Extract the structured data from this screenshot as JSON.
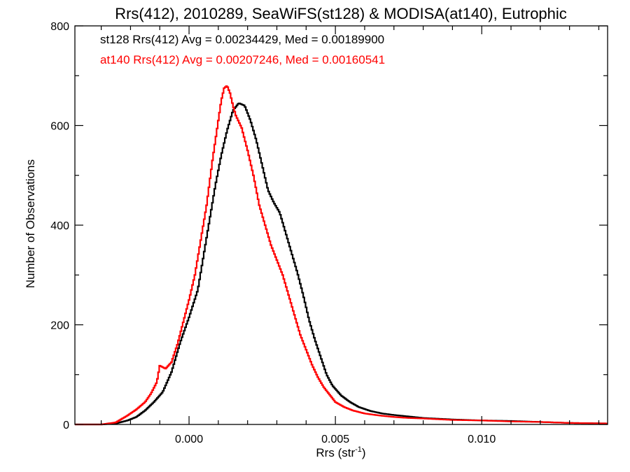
{
  "chart_data": {
    "type": "line",
    "title": "Rrs(412), 2010289, SeaWiFS(st128) & MODISA(at140), Eutrophic",
    "xlabel_base": "Rrs (str",
    "xlabel_sup": "-1",
    "xlabel_close": ")",
    "ylabel": "Number of Observations",
    "xlim": [
      -0.0039,
      0.0143
    ],
    "ylim": [
      0,
      800
    ],
    "x_ticks": [
      {
        "value": 0.0,
        "label": "0.000"
      },
      {
        "value": 0.005,
        "label": "0.005"
      },
      {
        "value": 0.01,
        "label": "0.010"
      }
    ],
    "y_ticks": [
      {
        "value": 0,
        "label": "0"
      },
      {
        "value": 200,
        "label": "200"
      },
      {
        "value": 400,
        "label": "400"
      },
      {
        "value": 600,
        "label": "600"
      },
      {
        "value": 800,
        "label": "800"
      }
    ],
    "grid": false,
    "legend_position": "top-left",
    "series": [
      {
        "name": "st128 Rrs(412) Avg = 0.00234429, Med = 0.00189900",
        "color": "#000000",
        "points": [
          [
            -0.0039,
            0
          ],
          [
            -0.003,
            0
          ],
          [
            -0.0025,
            2
          ],
          [
            -0.0021,
            8
          ],
          [
            -0.0018,
            15
          ],
          [
            -0.0015,
            28
          ],
          [
            -0.0012,
            45
          ],
          [
            -0.0009,
            65
          ],
          [
            -0.0006,
            105
          ],
          [
            -0.0003,
            165
          ],
          [
            0.0,
            215
          ],
          [
            0.0003,
            270
          ],
          [
            0.0005,
            340
          ],
          [
            0.0007,
            410
          ],
          [
            0.0009,
            480
          ],
          [
            0.0011,
            540
          ],
          [
            0.0013,
            590
          ],
          [
            0.0015,
            630
          ],
          [
            0.0017,
            645
          ],
          [
            0.0019,
            640
          ],
          [
            0.0021,
            610
          ],
          [
            0.0023,
            570
          ],
          [
            0.0025,
            520
          ],
          [
            0.0027,
            470
          ],
          [
            0.0029,
            445
          ],
          [
            0.0031,
            425
          ],
          [
            0.0033,
            385
          ],
          [
            0.0035,
            345
          ],
          [
            0.0037,
            305
          ],
          [
            0.0039,
            260
          ],
          [
            0.0041,
            210
          ],
          [
            0.0043,
            170
          ],
          [
            0.0045,
            135
          ],
          [
            0.0047,
            100
          ],
          [
            0.0049,
            78
          ],
          [
            0.0052,
            58
          ],
          [
            0.0055,
            45
          ],
          [
            0.0058,
            35
          ],
          [
            0.0062,
            27
          ],
          [
            0.0066,
            22
          ],
          [
            0.007,
            19
          ],
          [
            0.0075,
            16
          ],
          [
            0.008,
            13
          ],
          [
            0.009,
            10
          ],
          [
            0.01,
            8
          ],
          [
            0.011,
            7
          ],
          [
            0.012,
            5
          ],
          [
            0.013,
            3
          ],
          [
            0.0143,
            2
          ]
        ]
      },
      {
        "name": "at140 Rrs(412) Avg = 0.00207246, Med = 0.00160541",
        "color": "#ff0000",
        "points": [
          [
            -0.0039,
            0
          ],
          [
            -0.003,
            0
          ],
          [
            -0.0025,
            4
          ],
          [
            -0.0021,
            18
          ],
          [
            -0.0018,
            30
          ],
          [
            -0.0015,
            45
          ],
          [
            -0.0013,
            62
          ],
          [
            -0.0011,
            85
          ],
          [
            -0.001,
            118
          ],
          [
            -0.0008,
            112
          ],
          [
            -0.0006,
            125
          ],
          [
            -0.0004,
            160
          ],
          [
            -0.0002,
            205
          ],
          [
            0.0,
            250
          ],
          [
            0.0002,
            300
          ],
          [
            0.0004,
            370
          ],
          [
            0.0006,
            440
          ],
          [
            0.0008,
            530
          ],
          [
            0.001,
            610
          ],
          [
            0.0011,
            650
          ],
          [
            0.0012,
            675
          ],
          [
            0.0013,
            680
          ],
          [
            0.0014,
            665
          ],
          [
            0.0015,
            640
          ],
          [
            0.0016,
            620
          ],
          [
            0.0018,
            595
          ],
          [
            0.002,
            550
          ],
          [
            0.0022,
            500
          ],
          [
            0.0024,
            440
          ],
          [
            0.0026,
            400
          ],
          [
            0.0028,
            360
          ],
          [
            0.003,
            330
          ],
          [
            0.0032,
            300
          ],
          [
            0.0034,
            260
          ],
          [
            0.0036,
            220
          ],
          [
            0.0038,
            180
          ],
          [
            0.004,
            150
          ],
          [
            0.0042,
            120
          ],
          [
            0.0044,
            95
          ],
          [
            0.0046,
            75
          ],
          [
            0.0048,
            60
          ],
          [
            0.005,
            45
          ],
          [
            0.0053,
            35
          ],
          [
            0.0056,
            28
          ],
          [
            0.006,
            22
          ],
          [
            0.0065,
            18
          ],
          [
            0.007,
            15
          ],
          [
            0.0075,
            13
          ],
          [
            0.008,
            12
          ],
          [
            0.009,
            9
          ],
          [
            0.01,
            8
          ],
          [
            0.011,
            6
          ],
          [
            0.012,
            5
          ],
          [
            0.013,
            3
          ],
          [
            0.0143,
            2
          ]
        ]
      }
    ]
  }
}
